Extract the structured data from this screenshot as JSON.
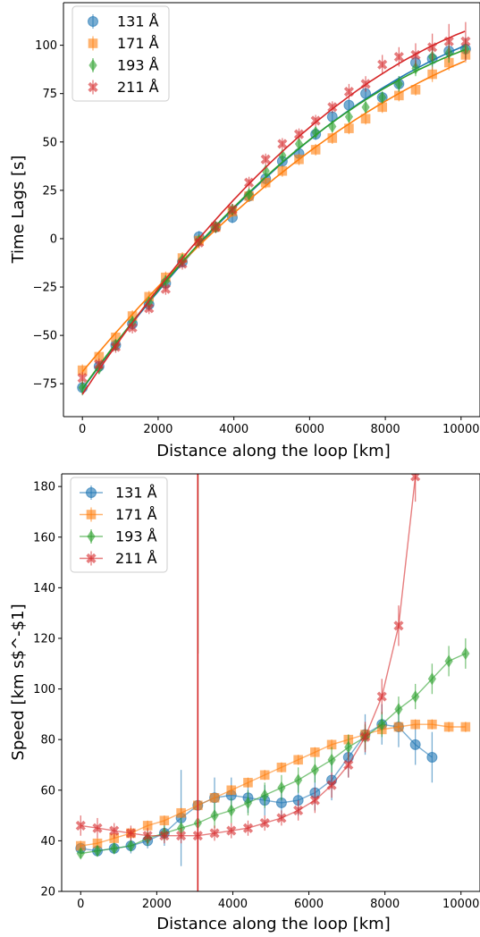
{
  "colors": {
    "131": "#1f77b4",
    "171": "#ff7f0e",
    "193": "#2ca02c",
    "211": "#d62728"
  },
  "chart_data": [
    {
      "type": "line",
      "xlabel": "Distance along the loop [km]",
      "ylabel": "Time Lags [s]",
      "xlim": [
        -500,
        10500
      ],
      "ylim": [
        -92,
        122
      ],
      "xticks": [
        0,
        2000,
        4000,
        6000,
        8000,
        10000
      ],
      "yticks": [
        -75,
        -50,
        -25,
        0,
        25,
        50,
        75,
        100
      ],
      "legend": "top-left",
      "series": [
        {
          "name": "131 Å",
          "color": "#1f77b4",
          "marker": "circle",
          "fit": true,
          "x": [
            0,
            440,
            880,
            1320,
            1760,
            2200,
            2640,
            3080,
            3520,
            3960,
            4400,
            4840,
            5280,
            5720,
            6160,
            6600,
            7040,
            7480,
            7920,
            8360,
            8800,
            9240,
            9680,
            10120
          ],
          "y": [
            -77,
            -66,
            -55,
            -44,
            -34,
            -23,
            -12,
            1,
            6,
            11,
            22,
            31,
            40,
            44,
            54,
            63,
            69,
            75,
            73,
            80,
            91,
            93,
            97,
            98
          ],
          "err": [
            3,
            3,
            3,
            3,
            3,
            3,
            3,
            3,
            3,
            3,
            3,
            3,
            3,
            3,
            3,
            3,
            3,
            3,
            3,
            4,
            5,
            6,
            6,
            6
          ]
        },
        {
          "name": "171 Å",
          "color": "#ff7f0e",
          "marker": "square",
          "fit": true,
          "x": [
            0,
            440,
            880,
            1320,
            1760,
            2200,
            2640,
            3080,
            3520,
            3960,
            4400,
            4840,
            5280,
            5720,
            6160,
            6600,
            7040,
            7480,
            7920,
            8360,
            8800,
            9240,
            9680,
            10120
          ],
          "y": [
            -68,
            -61,
            -51,
            -40,
            -30,
            -20,
            -10,
            -1,
            6,
            14,
            22,
            29,
            35,
            41,
            46,
            52,
            57,
            62,
            68,
            74,
            77,
            85,
            91,
            95
          ],
          "err": [
            3,
            3,
            3,
            3,
            3,
            3,
            3,
            3,
            3,
            3,
            3,
            3,
            3,
            3,
            3,
            3,
            3,
            3,
            3,
            3,
            3,
            4,
            4,
            4
          ]
        },
        {
          "name": "193 Å",
          "color": "#2ca02c",
          "marker": "diamond",
          "fit": true,
          "x": [
            0,
            440,
            880,
            1320,
            1760,
            2200,
            2640,
            3080,
            3520,
            3960,
            4400,
            4840,
            5280,
            5720,
            6160,
            6600,
            7040,
            7480,
            7920,
            8360,
            8800,
            9240,
            9680,
            10120
          ],
          "y": [
            -77,
            -67,
            -55,
            -43,
            -33,
            -22,
            -11,
            -1,
            6,
            15,
            23,
            35,
            43,
            49,
            55,
            58,
            63,
            68,
            73,
            80,
            88,
            94,
            96,
            98
          ],
          "err": [
            4,
            3,
            3,
            3,
            3,
            3,
            3,
            3,
            3,
            3,
            3,
            3,
            3,
            3,
            3,
            3,
            3,
            3,
            3,
            4,
            4,
            5,
            5,
            5
          ]
        },
        {
          "name": "211 Å",
          "color": "#d62728",
          "marker": "x",
          "fit": true,
          "x": [
            0,
            440,
            880,
            1320,
            1760,
            2200,
            2640,
            3080,
            3520,
            3960,
            4400,
            4840,
            5280,
            5720,
            6160,
            6600,
            7040,
            7480,
            7920,
            8360,
            8800,
            9240,
            9680,
            10120
          ],
          "y": [
            -72,
            -65,
            -56,
            -46,
            -36,
            -26,
            -13,
            -2,
            6,
            15,
            29,
            41,
            49,
            54,
            61,
            68,
            76,
            80,
            90,
            94,
            95,
            99,
            102,
            102
          ],
          "err": [
            3,
            3,
            3,
            3,
            3,
            3,
            3,
            3,
            3,
            3,
            3,
            3,
            3,
            3,
            3,
            3,
            4,
            4,
            5,
            5,
            6,
            7,
            9,
            10
          ]
        }
      ]
    },
    {
      "type": "line",
      "xlabel": "Distance along the loop [km]",
      "ylabel": "Speed [km s$^-$1]",
      "xlim": [
        -500,
        10500
      ],
      "ylim": [
        20,
        185
      ],
      "xticks": [
        0,
        2000,
        4000,
        6000,
        8000,
        10000
      ],
      "yticks": [
        20,
        40,
        60,
        80,
        100,
        120,
        140,
        160,
        180
      ],
      "legend": "top-left",
      "series": [
        {
          "name": "131 Å",
          "color": "#1f77b4",
          "marker": "circle",
          "x": [
            0,
            440,
            880,
            1320,
            1760,
            2200,
            2640,
            3080,
            3520,
            3960,
            4400,
            4840,
            5280,
            5720,
            6160,
            6600,
            7040,
            7480,
            7920,
            8360,
            8800,
            9240
          ],
          "y": [
            37,
            36,
            37,
            38,
            40,
            43,
            49,
            54,
            57,
            58,
            57,
            56,
            55,
            56,
            59,
            64,
            73,
            82,
            86,
            85,
            78,
            73
          ],
          "err": [
            2,
            2,
            2,
            3,
            3,
            5,
            19,
            9,
            8,
            7,
            6,
            6,
            6,
            6,
            7,
            8,
            8,
            8,
            8,
            8,
            8,
            10
          ]
        },
        {
          "name": "171 Å",
          "color": "#ff7f0e",
          "marker": "square",
          "x": [
            0,
            440,
            880,
            1320,
            1760,
            2200,
            2640,
            3080,
            3520,
            3960,
            4400,
            4840,
            5280,
            5720,
            6160,
            6600,
            7040,
            7480,
            7920,
            8360,
            8800,
            9240,
            9680,
            10120
          ],
          "y": [
            38,
            39,
            41,
            43,
            46,
            48,
            51,
            54,
            57,
            60,
            63,
            66,
            69,
            72,
            75,
            78,
            80,
            82,
            84,
            85,
            86,
            86,
            85,
            85
          ],
          "err": [
            2,
            2,
            2,
            2,
            2,
            2,
            2,
            2,
            2,
            2,
            2,
            2,
            2,
            2,
            2,
            2,
            2,
            2,
            2,
            2,
            2,
            2,
            2,
            2
          ]
        },
        {
          "name": "193 Å",
          "color": "#2ca02c",
          "marker": "diamond",
          "x": [
            0,
            440,
            880,
            1320,
            1760,
            2200,
            2640,
            3080,
            3520,
            3960,
            4400,
            4840,
            5280,
            5720,
            6160,
            6600,
            7040,
            7480,
            7920,
            8360,
            8800,
            9240,
            9680,
            10120
          ],
          "y": [
            35,
            36,
            37,
            38,
            41,
            43,
            45,
            47,
            50,
            52,
            55,
            58,
            61,
            64,
            68,
            72,
            77,
            81,
            86,
            92,
            97,
            104,
            111,
            114
          ],
          "err": [
            2,
            2,
            2,
            2,
            3,
            3,
            4,
            5,
            5,
            5,
            5,
            5,
            5,
            5,
            5,
            5,
            5,
            5,
            5,
            5,
            5,
            6,
            6,
            6
          ],
          "spike_x": 3080
        },
        {
          "name": "211 Å",
          "color": "#d62728",
          "marker": "x",
          "x": [
            0,
            440,
            880,
            1320,
            1760,
            2200,
            2640,
            3080,
            3520,
            3960,
            4400,
            4840,
            5280,
            5720,
            6160,
            6600,
            7040,
            7480,
            7920,
            8360,
            8800
          ],
          "y": [
            46,
            45,
            44,
            43,
            42,
            42,
            42,
            42,
            43,
            44,
            45,
            47,
            49,
            52,
            56,
            62,
            70,
            81,
            97,
            125,
            184
          ],
          "err": [
            4,
            4,
            3,
            3,
            3,
            3,
            3,
            3,
            3,
            3,
            3,
            3,
            3,
            4,
            5,
            5,
            5,
            6,
            7,
            8,
            10
          ],
          "spike_x": 3080
        }
      ]
    }
  ]
}
